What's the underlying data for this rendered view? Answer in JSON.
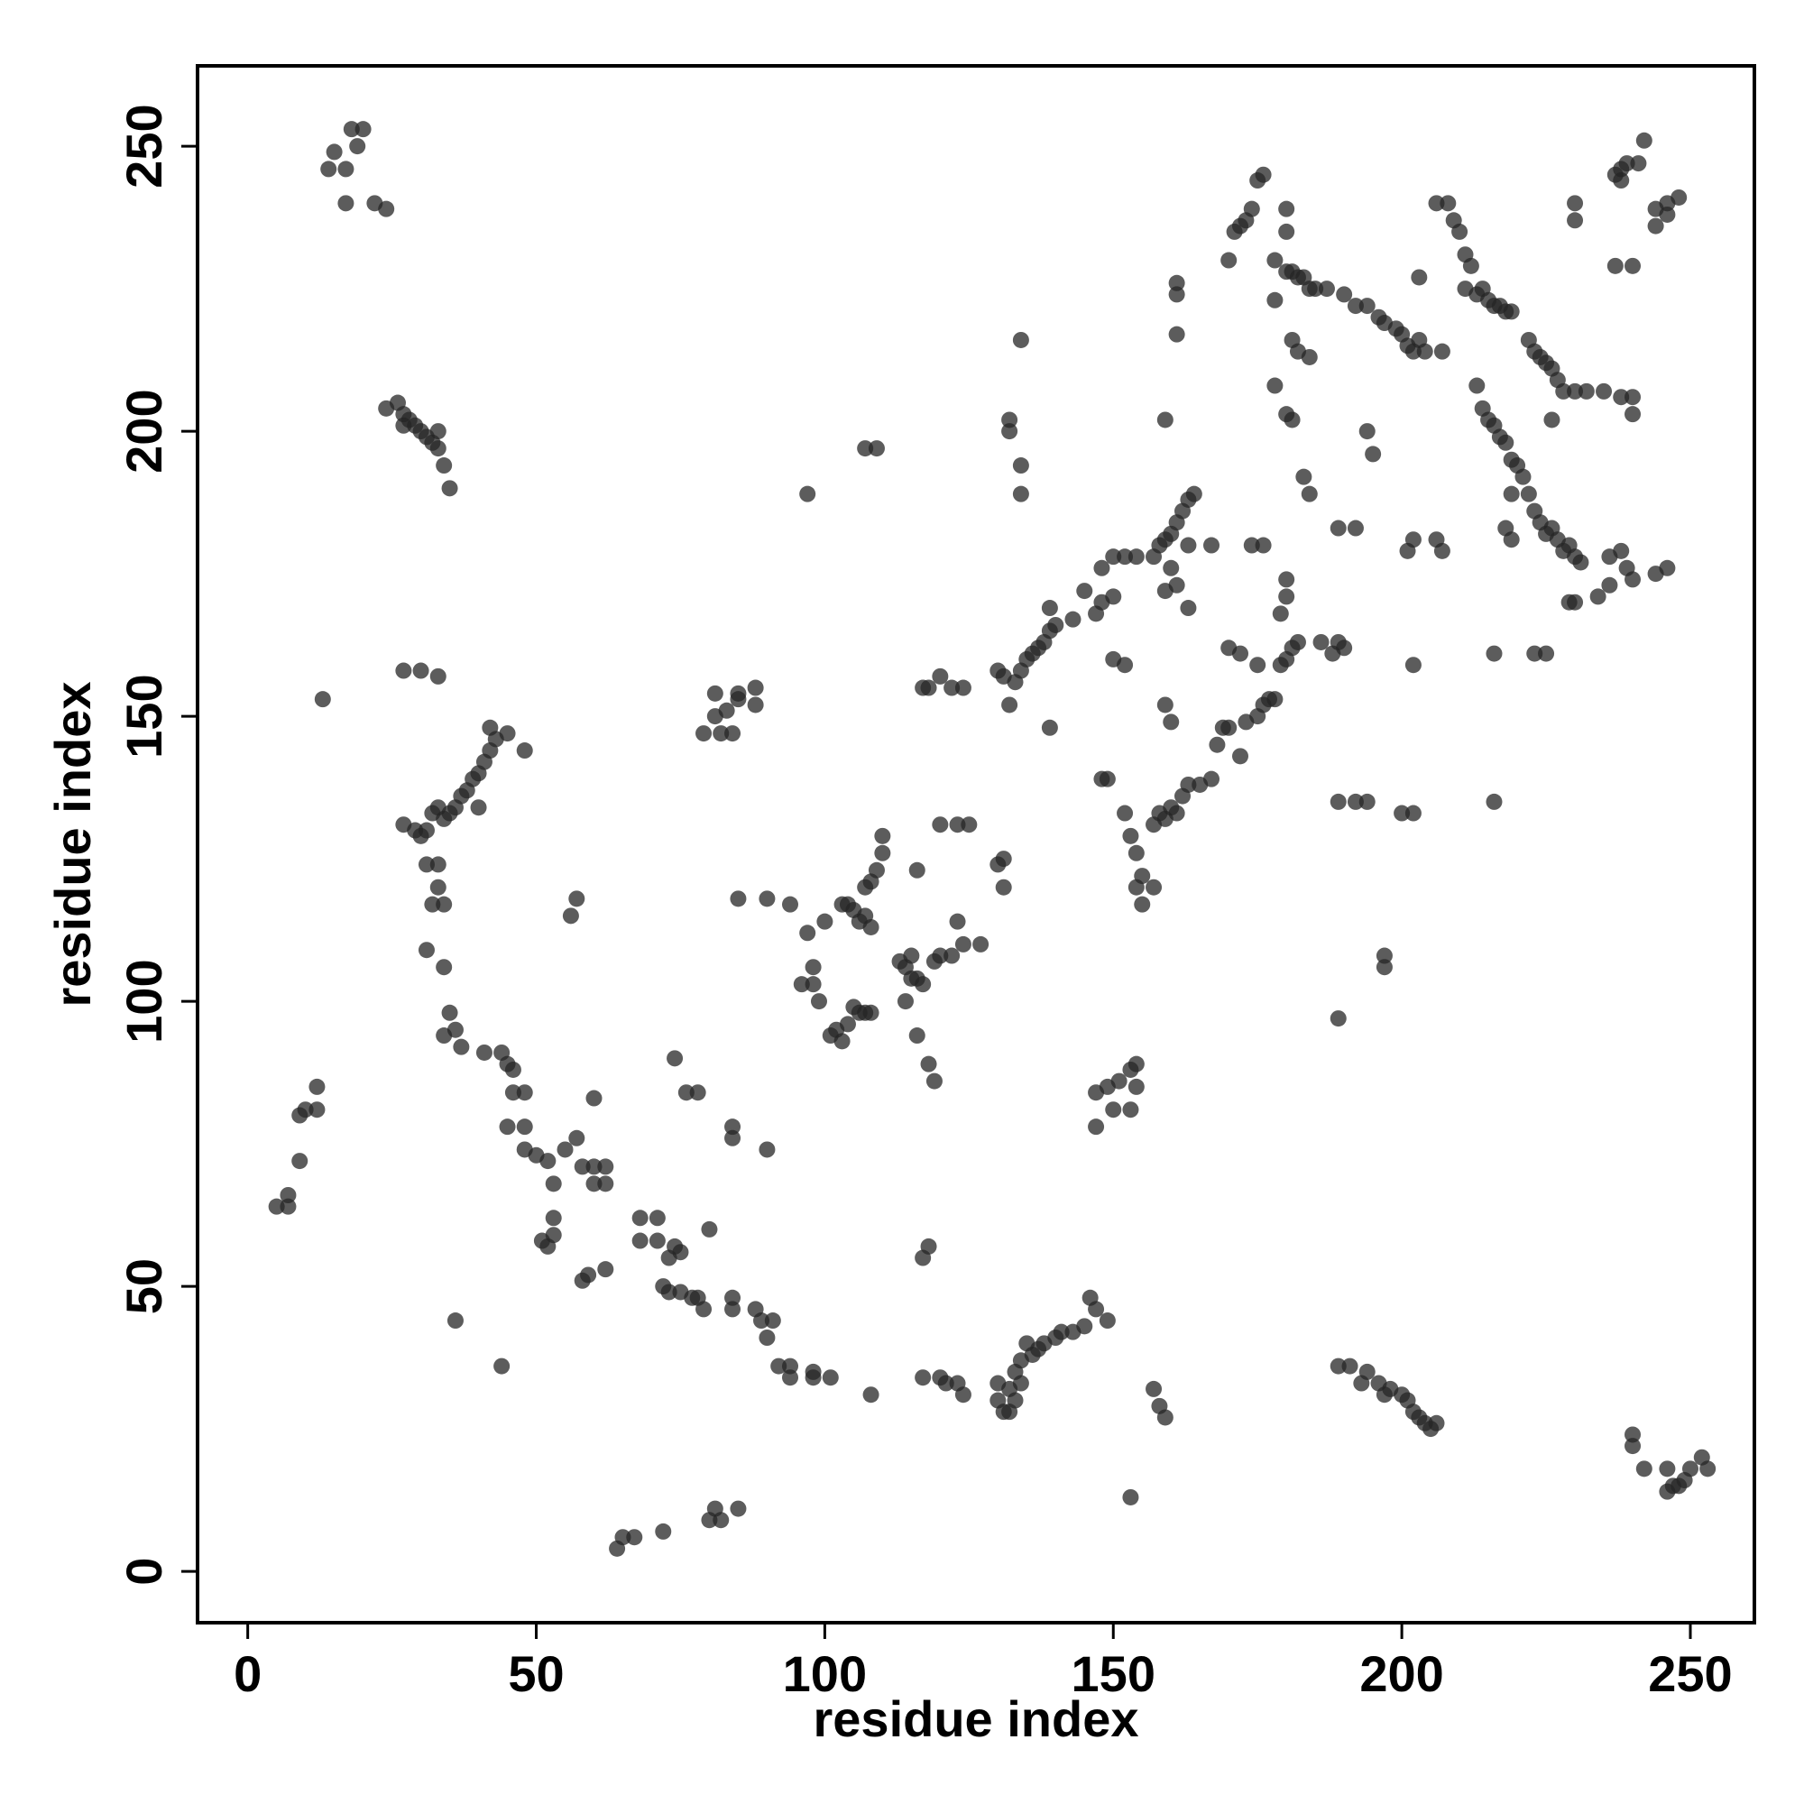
{
  "chart_data": {
    "type": "scatter",
    "x_label": "residue index",
    "y_label": "residue index",
    "color": "#262626",
    "xlim": [
      -8.7,
      261.1
    ],
    "ylim": [
      -9,
      264.1
    ],
    "xticks": [
      0,
      50,
      100,
      150,
      200,
      250
    ],
    "yticks": [
      0,
      50,
      100,
      150,
      200,
      250
    ],
    "x": [
      14,
      15,
      17,
      18,
      19,
      20,
      17,
      22,
      24,
      24,
      26,
      27,
      28,
      29,
      30,
      31,
      32,
      33,
      34,
      35,
      33,
      27,
      13,
      27,
      30,
      33,
      27,
      29,
      30,
      31,
      32,
      33,
      34,
      35,
      36,
      37,
      38,
      39,
      40,
      41,
      42,
      43,
      42,
      45,
      48,
      40,
      31,
      33,
      33,
      34,
      32,
      31,
      34,
      35,
      36,
      34,
      37,
      41,
      44,
      45,
      46,
      46,
      48,
      45,
      48,
      48,
      50,
      52,
      53,
      55,
      57,
      58,
      60,
      60,
      62,
      62,
      60,
      53,
      51,
      52,
      53,
      58,
      59,
      62,
      56,
      57,
      68,
      68,
      71,
      71,
      73,
      74,
      75,
      72,
      73,
      75,
      77,
      78,
      79,
      74,
      76,
      78,
      80,
      84,
      84,
      90,
      85,
      90,
      84,
      84,
      88,
      89,
      91,
      90,
      92,
      94,
      94,
      98,
      98,
      101,
      108,
      44,
      36,
      5,
      7,
      7,
      9,
      9,
      10,
      12,
      12,
      64,
      65,
      67,
      72,
      80,
      81,
      82,
      85,
      79,
      81,
      81,
      82,
      83,
      84,
      85,
      85,
      88,
      88,
      97,
      94,
      97,
      96,
      98,
      99,
      98,
      100,
      101,
      102,
      103,
      104,
      105,
      106,
      107,
      108,
      103,
      105,
      106,
      107,
      108,
      109,
      110,
      110,
      107,
      108,
      104,
      107,
      109,
      113,
      114,
      115,
      116,
      117,
      115,
      114,
      119,
      120,
      122,
      124,
      127,
      116,
      118,
      119,
      116,
      120,
      123,
      125,
      123,
      117,
      118,
      117,
      120,
      123,
      121,
      124,
      117,
      118,
      120,
      122,
      124,
      130,
      131,
      132,
      133,
      134,
      135,
      136,
      137,
      138,
      140,
      141,
      143,
      145,
      146,
      147,
      149,
      130,
      132,
      133,
      134,
      130,
      131,
      131,
      130,
      131,
      133,
      134,
      135,
      136,
      137,
      138,
      139,
      140,
      139,
      132,
      132,
      134,
      134,
      132,
      139,
      134,
      143,
      145,
      147,
      148,
      148,
      150,
      152,
      154,
      150,
      152,
      150,
      148,
      149,
      152,
      153,
      154,
      155,
      154,
      155,
      157,
      157,
      158,
      159,
      160,
      161,
      162,
      163,
      165,
      167,
      168,
      169,
      170,
      172,
      173,
      175,
      176,
      177,
      178,
      179,
      180,
      181,
      182,
      179,
      180,
      180,
      157,
      158,
      159,
      160,
      161,
      162,
      163,
      164,
      161,
      163,
      159,
      160,
      163,
      167,
      174,
      176,
      172,
      175,
      170,
      159,
      160,
      149,
      151,
      153,
      154,
      154,
      150,
      147,
      147,
      153,
      153,
      157,
      158,
      159,
      161,
      161,
      161,
      159,
      170,
      171,
      172,
      173,
      174,
      175,
      176,
      178,
      180,
      181,
      182,
      183,
      184,
      185,
      187,
      180,
      180,
      178,
      178,
      180,
      181,
      181,
      182,
      184,
      183,
      184,
      186,
      189,
      190,
      189,
      192,
      188,
      189,
      192,
      194,
      189,
      189,
      191,
      193,
      194,
      196,
      197,
      198,
      200,
      201,
      202,
      203,
      204,
      205,
      206,
      190,
      192,
      194,
      196,
      197,
      199,
      200,
      201,
      202,
      203,
      204,
      207,
      203,
      194,
      195,
      197,
      197,
      200,
      202,
      201,
      202,
      206,
      202,
      207,
      206,
      208,
      209,
      210,
      211,
      212,
      211,
      213,
      214,
      215,
      216,
      217,
      218,
      219,
      213,
      214,
      215,
      216,
      217,
      218,
      219,
      220,
      221,
      219,
      218,
      219,
      222,
      223,
      224,
      225,
      226,
      227,
      228,
      229,
      230,
      231,
      223,
      225,
      216,
      216,
      222,
      223,
      224,
      225,
      226,
      227,
      228,
      230,
      232,
      235,
      238,
      240,
      240,
      238,
      236,
      239,
      240,
      236,
      234,
      229,
      230,
      226,
      230,
      230,
      237,
      238,
      239,
      241,
      238,
      242,
      237,
      240,
      244,
      246,
      246,
      248,
      244,
      246,
      244,
      240,
      240,
      242,
      246,
      246,
      247,
      249,
      250,
      252,
      253,
      248
    ],
    "y": [
      246,
      249,
      246,
      253,
      250,
      253,
      240,
      240,
      239,
      204,
      205,
      203,
      202,
      201,
      200,
      199,
      198,
      197,
      194,
      190,
      200,
      201,
      153,
      158,
      158,
      157,
      131,
      130,
      129,
      130,
      133,
      134,
      132,
      133,
      134,
      136,
      137,
      139,
      140,
      142,
      144,
      146,
      148,
      147,
      144,
      134,
      124,
      124,
      120,
      117,
      117,
      109,
      106,
      98,
      95,
      94,
      92,
      91,
      91,
      89,
      88,
      84,
      84,
      78,
      78,
      74,
      73,
      72,
      68,
      74,
      76,
      71,
      71,
      68,
      68,
      71,
      83,
      62,
      58,
      57,
      59,
      51,
      52,
      53,
      115,
      118,
      62,
      58,
      62,
      58,
      55,
      57,
      56,
      50,
      49,
      49,
      48,
      48,
      46,
      90,
      84,
      84,
      60,
      76,
      78,
      74,
      118,
      118,
      48,
      46,
      46,
      44,
      44,
      41,
      36,
      36,
      34,
      35,
      34,
      34,
      31,
      36,
      44,
      64,
      66,
      64,
      72,
      80,
      81,
      81,
      85,
      4,
      6,
      6,
      7,
      9,
      11,
      9,
      11,
      147,
      154,
      150,
      147,
      151,
      147,
      154,
      153,
      155,
      152,
      189,
      117,
      112,
      103,
      103,
      100,
      106,
      114,
      94,
      95,
      93,
      96,
      99,
      98,
      98,
      98,
      117,
      116,
      114,
      120,
      121,
      123,
      126,
      129,
      115,
      113,
      117,
      197,
      197,
      107,
      106,
      104,
      104,
      103,
      108,
      100,
      107,
      108,
      108,
      110,
      110,
      94,
      89,
      86,
      123,
      131,
      131,
      131,
      114,
      55,
      57,
      34,
      34,
      33,
      33,
      31,
      155,
      155,
      157,
      155,
      155,
      30,
      28,
      32,
      35,
      37,
      40,
      38,
      39,
      40,
      41,
      42,
      42,
      43,
      48,
      46,
      44,
      33,
      28,
      30,
      33,
      124,
      125,
      120,
      158,
      157,
      156,
      158,
      160,
      161,
      162,
      163,
      165,
      166,
      169,
      200,
      202,
      194,
      189,
      152,
      148,
      216,
      167,
      172,
      168,
      170,
      176,
      178,
      178,
      178,
      160,
      159,
      171,
      139,
      139,
      133,
      129,
      126,
      122,
      120,
      117,
      120,
      131,
      133,
      132,
      134,
      133,
      136,
      138,
      138,
      139,
      145,
      148,
      148,
      143,
      149,
      150,
      152,
      153,
      153,
      159,
      160,
      162,
      163,
      168,
      171,
      174,
      178,
      180,
      181,
      182,
      184,
      186,
      188,
      189,
      173,
      169,
      172,
      176,
      180,
      180,
      180,
      180,
      161,
      159,
      162,
      152,
      149,
      85,
      86,
      88,
      89,
      85,
      81,
      84,
      78,
      81,
      13,
      32,
      29,
      27,
      226,
      224,
      217,
      202,
      230,
      235,
      236,
      237,
      239,
      244,
      245,
      230,
      228,
      228,
      227,
      227,
      225,
      225,
      225,
      235,
      239,
      223,
      208,
      203,
      202,
      216,
      214,
      213,
      192,
      189,
      163,
      163,
      162,
      183,
      183,
      161,
      135,
      135,
      135,
      97,
      36,
      36,
      33,
      35,
      33,
      31,
      32,
      31,
      30,
      28,
      27,
      26,
      25,
      26,
      224,
      222,
      222,
      220,
      219,
      218,
      217,
      215,
      214,
      216,
      214,
      214,
      227,
      200,
      196,
      108,
      106,
      133,
      133,
      179,
      159,
      181,
      181,
      179,
      240,
      240,
      237,
      235,
      231,
      229,
      225,
      224,
      225,
      223,
      222,
      222,
      221,
      221,
      208,
      204,
      202,
      201,
      199,
      198,
      195,
      194,
      192,
      189,
      183,
      181,
      189,
      186,
      184,
      182,
      183,
      181,
      179,
      180,
      178,
      177,
      161,
      161,
      161,
      135,
      216,
      214,
      213,
      212,
      211,
      209,
      207,
      207,
      207,
      207,
      206,
      206,
      203,
      179,
      178,
      176,
      174,
      173,
      171,
      170,
      170,
      202,
      240,
      237,
      245,
      246,
      247,
      247,
      244,
      251,
      229,
      229,
      239,
      238,
      240,
      241,
      236,
      176,
      175,
      24,
      22,
      18,
      18,
      14,
      15,
      16,
      18,
      20,
      18,
      15
    ]
  }
}
